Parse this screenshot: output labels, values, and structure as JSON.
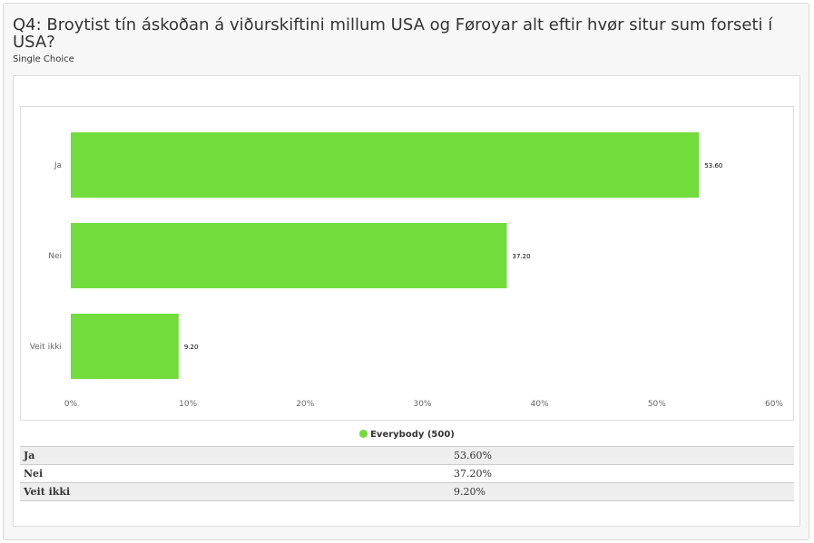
{
  "question": {
    "title": "Q4: Broytist tín áskoðan á viðurskiftini millum USA og Føroyar alt eftir hvør situr sum forseti í USA?",
    "type": "Single Choice"
  },
  "colors": {
    "bar": "#71dc3c"
  },
  "chart_data": {
    "type": "bar",
    "orientation": "horizontal",
    "categories": [
      "Ja",
      "Nei",
      "Veit ikki"
    ],
    "series": [
      {
        "name": "Everybody (500)",
        "values": [
          53.6,
          37.2,
          9.2
        ]
      }
    ],
    "data_labels": [
      "53.60",
      "37.20",
      "9.20"
    ],
    "xlim": [
      0,
      60
    ],
    "x_ticks": [
      "0%",
      "10%",
      "20%",
      "30%",
      "40%",
      "50%",
      "60%"
    ],
    "grid": false,
    "legend_position": "bottom"
  },
  "legend": {
    "label": "Everybody (500)"
  },
  "table": {
    "rows": [
      {
        "label": "Ja",
        "value": "53.60%"
      },
      {
        "label": "Nei",
        "value": "37.20%"
      },
      {
        "label": "Veit ikki",
        "value": "9.20%"
      }
    ]
  }
}
